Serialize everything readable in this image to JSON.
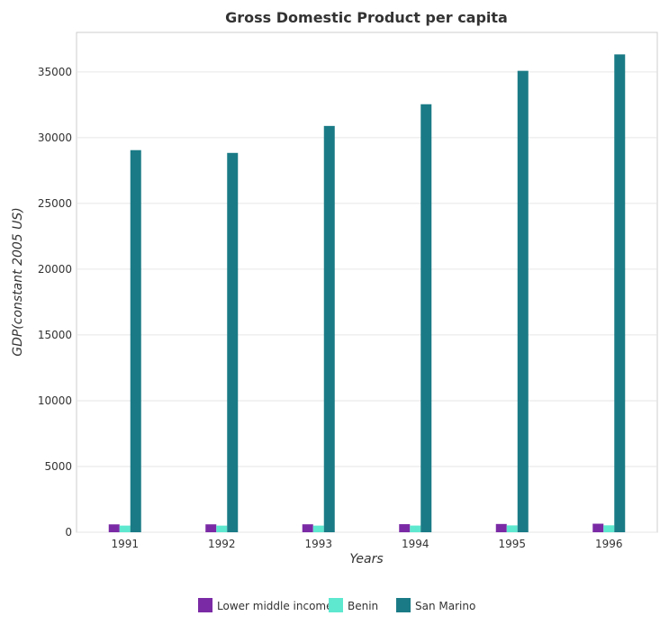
{
  "chart_data": {
    "type": "bar",
    "title": "Gross Domestic Product per capita",
    "xlabel": "Years",
    "ylabel": "GDP(constant 2005 US)",
    "categories": [
      "1991",
      "1992",
      "1993",
      "1994",
      "1995",
      "1996"
    ],
    "series": [
      {
        "name": "Lower middle income",
        "color": "#7b2aa5",
        "values": [
          598,
          601,
          604,
          613,
          628,
          648
        ]
      },
      {
        "name": "Benin",
        "color": "#5ee8d0",
        "values": [
          505,
          503,
          504,
          508,
          520,
          526
        ]
      },
      {
        "name": "San Marino",
        "color": "#1a7b86",
        "values": [
          29050,
          28840,
          30890,
          32540,
          35080,
          36330
        ]
      }
    ],
    "ylim": [
      0,
      38000
    ],
    "yticks": [
      0,
      5000,
      10000,
      15000,
      20000,
      25000,
      30000,
      35000
    ],
    "grid": true,
    "legend_position": "bottom"
  }
}
